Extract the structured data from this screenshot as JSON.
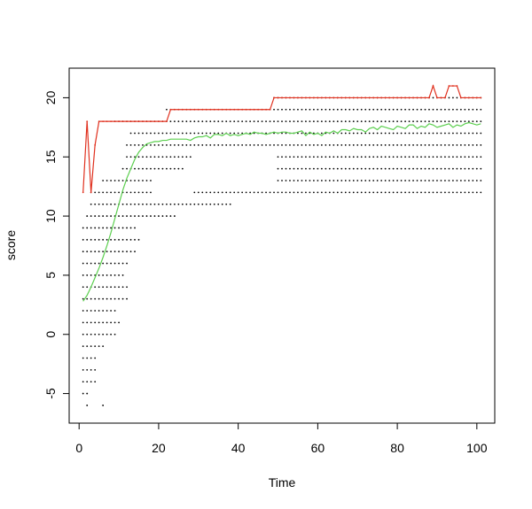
{
  "chart_data": {
    "type": "scatter",
    "title": "",
    "xlabel": "Time",
    "ylabel": "score",
    "xlim": [
      -2.5,
      104.5
    ],
    "ylim": [
      -7.5,
      22.5
    ],
    "x_ticks": [
      0,
      20,
      40,
      60,
      80,
      100
    ],
    "y_ticks": [
      -5,
      0,
      5,
      10,
      15,
      20
    ],
    "grid": false,
    "legend": "none",
    "colors": {
      "max_line": "#e0301e",
      "mean_line": "#5ccf4f",
      "points": "#000000"
    },
    "series": [
      {
        "type": "line",
        "x": [
          1,
          2,
          3,
          4,
          5,
          6,
          7,
          8,
          9,
          10,
          11,
          12,
          13,
          14,
          15,
          16,
          17,
          18,
          19,
          20,
          21,
          22,
          23,
          24,
          25,
          26,
          27,
          28,
          29,
          30,
          31,
          32,
          33,
          34,
          35,
          36,
          37,
          38,
          39,
          40,
          41,
          42,
          43,
          44,
          45,
          46,
          47,
          48,
          49,
          50,
          51,
          52,
          53,
          54,
          55,
          56,
          57,
          58,
          59,
          60,
          61,
          62,
          63,
          64,
          65,
          66,
          67,
          68,
          69,
          70,
          71,
          72,
          73,
          74,
          75,
          76,
          77,
          78,
          79,
          80,
          81,
          82,
          83,
          84,
          85,
          86,
          87,
          88,
          89,
          90,
          91,
          92,
          93,
          94,
          95,
          96,
          97,
          98,
          99,
          100,
          101
        ],
        "values": [
          12,
          18,
          12,
          16,
          18,
          18,
          18,
          18,
          18,
          18,
          18,
          18,
          18,
          18,
          18,
          18,
          18,
          18,
          18,
          18,
          18,
          18,
          19,
          19,
          19,
          19,
          19,
          19,
          19,
          19,
          19,
          19,
          19,
          19,
          19,
          19,
          19,
          19,
          19,
          19,
          19,
          19,
          19,
          19,
          19,
          19,
          19,
          19,
          20,
          20,
          20,
          20,
          20,
          20,
          20,
          20,
          20,
          20,
          20,
          20,
          20,
          20,
          20,
          20,
          20,
          20,
          20,
          20,
          20,
          20,
          20,
          20,
          20,
          20,
          20,
          20,
          20,
          20,
          20,
          20,
          20,
          20,
          20,
          20,
          20,
          20,
          20,
          20,
          21,
          20,
          20,
          20,
          21,
          21,
          21,
          20,
          20,
          20,
          20,
          20,
          20
        ]
      },
      {
        "type": "line",
        "x": [
          1,
          2,
          3,
          4,
          5,
          6,
          7,
          8,
          9,
          10,
          11,
          12,
          13,
          14,
          15,
          16,
          17,
          18,
          19,
          20,
          21,
          22,
          23,
          24,
          25,
          26,
          27,
          28,
          29,
          30,
          31,
          32,
          33,
          34,
          35,
          36,
          37,
          38,
          39,
          40,
          41,
          42,
          43,
          44,
          45,
          46,
          47,
          48,
          49,
          50,
          51,
          52,
          53,
          54,
          55,
          56,
          57,
          58,
          59,
          60,
          61,
          62,
          63,
          64,
          65,
          66,
          67,
          68,
          69,
          70,
          71,
          72,
          73,
          74,
          75,
          76,
          77,
          78,
          79,
          80,
          81,
          82,
          83,
          84,
          85,
          86,
          87,
          88,
          89,
          90,
          91,
          92,
          93,
          94,
          95,
          96,
          97,
          98,
          99,
          100,
          101
        ],
        "values": [
          2.8,
          3.3,
          4.0,
          4.8,
          5.6,
          6.5,
          7.5,
          8.6,
          9.8,
          11.0,
          12.2,
          13.2,
          14.0,
          14.8,
          15.4,
          15.8,
          16.1,
          16.2,
          16.3,
          16.3,
          16.4,
          16.4,
          16.5,
          16.5,
          16.5,
          16.5,
          16.5,
          16.4,
          16.6,
          16.7,
          16.7,
          16.8,
          16.6,
          16.9,
          16.9,
          16.8,
          17.0,
          16.8,
          16.9,
          16.8,
          16.9,
          17.0,
          16.9,
          17.1,
          17.0,
          17.0,
          16.9,
          17.0,
          17.1,
          17.0,
          17.1,
          17.1,
          17.0,
          17.0,
          17.1,
          17.2,
          16.8,
          17.1,
          16.9,
          17.0,
          16.8,
          17.1,
          17.0,
          17.2,
          17.0,
          17.3,
          17.3,
          17.2,
          17.4,
          17.3,
          17.3,
          17.1,
          17.4,
          17.5,
          17.3,
          17.6,
          17.5,
          17.4,
          17.3,
          17.6,
          17.5,
          17.4,
          17.7,
          17.7,
          17.4,
          17.6,
          17.5,
          17.8,
          17.7,
          17.5,
          17.6,
          17.7,
          17.8,
          17.5,
          17.7,
          17.6,
          17.8,
          17.9,
          17.8,
          17.7,
          17.8
        ]
      }
    ],
    "scatter_rows": [
      {
        "y": 20,
        "segments": [
          [
            49,
            101
          ]
        ]
      },
      {
        "y": 19,
        "segments": [
          [
            22,
            101
          ]
        ]
      },
      {
        "y": 18,
        "segments": [
          [
            9,
            101
          ]
        ]
      },
      {
        "y": 17,
        "segments": [
          [
            13,
            101
          ]
        ]
      },
      {
        "y": 16,
        "segments": [
          [
            12,
            101
          ]
        ]
      },
      {
        "y": 15,
        "segments": [
          [
            12,
            28
          ],
          [
            50,
            101
          ]
        ]
      },
      {
        "y": 14,
        "segments": [
          [
            11,
            26
          ],
          [
            50,
            101
          ]
        ]
      },
      {
        "y": 13,
        "segments": [
          [
            6,
            18
          ],
          [
            50,
            101
          ]
        ]
      },
      {
        "y": 12,
        "segments": [
          [
            3,
            18
          ],
          [
            29,
            101
          ]
        ]
      },
      {
        "y": 11,
        "segments": [
          [
            3,
            38
          ]
        ]
      },
      {
        "y": 10,
        "segments": [
          [
            2,
            24
          ]
        ]
      },
      {
        "y": 9,
        "segments": [
          [
            1,
            14
          ]
        ]
      },
      {
        "y": 8,
        "segments": [
          [
            1,
            15
          ]
        ]
      },
      {
        "y": 7,
        "segments": [
          [
            1,
            14
          ]
        ]
      },
      {
        "y": 6,
        "segments": [
          [
            1,
            12
          ]
        ]
      },
      {
        "y": 5,
        "segments": [
          [
            1,
            11
          ]
        ]
      },
      {
        "y": 4,
        "segments": [
          [
            1,
            12
          ]
        ]
      },
      {
        "y": 3,
        "segments": [
          [
            1,
            12
          ]
        ]
      },
      {
        "y": 2,
        "segments": [
          [
            1,
            9
          ]
        ]
      },
      {
        "y": 1,
        "segments": [
          [
            1,
            10
          ]
        ]
      },
      {
        "y": 0,
        "segments": [
          [
            1,
            9
          ]
        ]
      },
      {
        "y": -1,
        "segments": [
          [
            1,
            6
          ]
        ]
      },
      {
        "y": -2,
        "segments": [
          [
            1,
            4
          ]
        ]
      },
      {
        "y": -3,
        "segments": [
          [
            1,
            4
          ]
        ]
      },
      {
        "y": -4,
        "segments": [
          [
            1,
            4
          ]
        ]
      },
      {
        "y": -5,
        "segments": [
          [
            1,
            2
          ]
        ]
      },
      {
        "y": -6,
        "segments": [
          [
            2,
            2
          ],
          [
            6,
            6
          ]
        ]
      }
    ]
  }
}
